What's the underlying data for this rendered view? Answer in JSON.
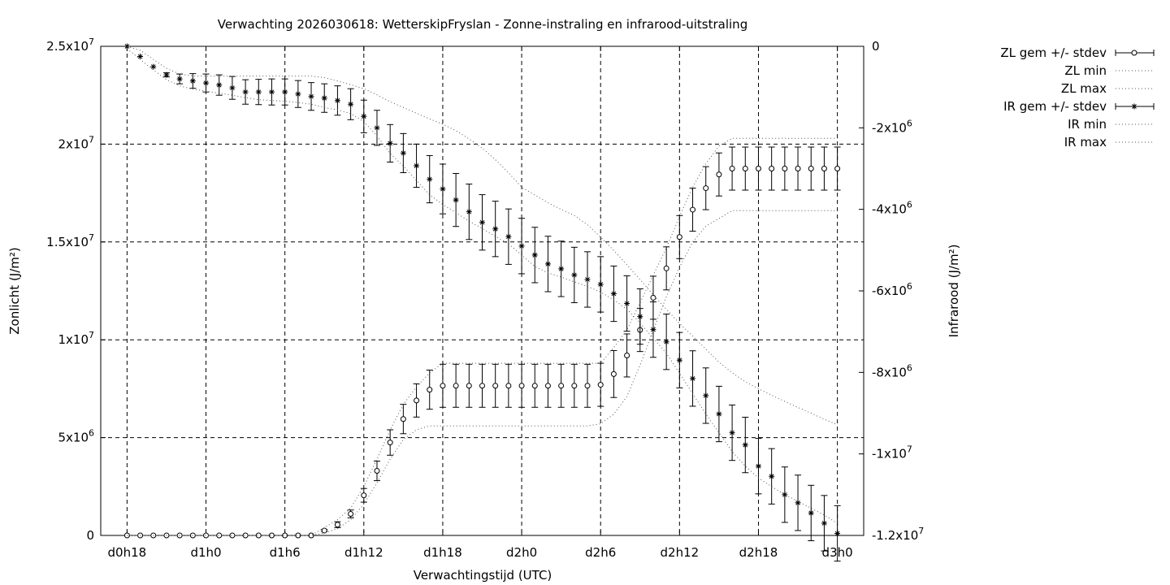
{
  "chart_data": {
    "type": "scatter",
    "title": "Verwachting 2026030618: WetterskipFryslan - Zonne-instraling en infrarood-uitstraling",
    "xlabel": "Verwachtingstijd (UTC)",
    "ylabel": "Zonlicht (J/m²)",
    "y2label": "Infrarood (J/m²)",
    "x_start_hours": 18,
    "x_step_hours": 1,
    "x_ticks": [
      {
        "hour": 18,
        "label": "d0h18"
      },
      {
        "hour": 24,
        "label": "d1h0"
      },
      {
        "hour": 30,
        "label": "d1h6"
      },
      {
        "hour": 36,
        "label": "d1h12"
      },
      {
        "hour": 42,
        "label": "d1h18"
      },
      {
        "hour": 48,
        "label": "d2h0"
      },
      {
        "hour": 54,
        "label": "d2h6"
      },
      {
        "hour": 60,
        "label": "d2h12"
      },
      {
        "hour": 66,
        "label": "d2h18"
      },
      {
        "hour": 72,
        "label": "d3h0"
      }
    ],
    "xlim": [
      16,
      74
    ],
    "ylim": [
      0,
      25000000
    ],
    "y2lim": [
      -12000000,
      0
    ],
    "y_ticks": [
      {
        "value": 0,
        "label": "0"
      },
      {
        "value": 5000000,
        "label": "5x10",
        "exp": "6"
      },
      {
        "value": 10000000,
        "label": "1x10",
        "exp": "7"
      },
      {
        "value": 15000000,
        "label": "1.5x10",
        "exp": "7"
      },
      {
        "value": 20000000,
        "label": "2x10",
        "exp": "7"
      },
      {
        "value": 25000000,
        "label": "2.5x10",
        "exp": "7"
      }
    ],
    "y2_ticks": [
      {
        "value": 0,
        "label": "0"
      },
      {
        "value": -2000000,
        "label": "-2x10",
        "exp": "6"
      },
      {
        "value": -4000000,
        "label": "-4x10",
        "exp": "6"
      },
      {
        "value": -6000000,
        "label": "-6x10",
        "exp": "6"
      },
      {
        "value": -8000000,
        "label": "-8x10",
        "exp": "6"
      },
      {
        "value": -10000000,
        "label": "-1x10",
        "exp": "7"
      },
      {
        "value": -12000000,
        "label": "-1.2x10",
        "exp": "7"
      }
    ],
    "grid": true,
    "legend_position": "outside-right",
    "series": [
      {
        "name": "ZL gem +/- stdev",
        "axis": "left",
        "marker": "circle",
        "mean": [
          0,
          0,
          0,
          0,
          0,
          0,
          0,
          0,
          0,
          0,
          0,
          0,
          0,
          0,
          0,
          250000,
          550000,
          1100000,
          2050000,
          3300000,
          4750000,
          5950000,
          6900000,
          7450000,
          7650000,
          7650000,
          7650000,
          7650000,
          7650000,
          7650000,
          7650000,
          7650000,
          7650000,
          7650000,
          7650000,
          7650000,
          7700000,
          8250000,
          9200000,
          10500000,
          12150000,
          13650000,
          15250000,
          16650000,
          17750000,
          18450000,
          18750000,
          18750000,
          18750000,
          18750000,
          18750000,
          18750000,
          18750000,
          18750000,
          18750000
        ],
        "stdev": [
          0,
          0,
          0,
          0,
          0,
          0,
          0,
          0,
          0,
          0,
          0,
          0,
          0,
          0,
          0,
          50000,
          150000,
          200000,
          350000,
          500000,
          650000,
          750000,
          850000,
          1000000,
          1100000,
          1100000,
          1100000,
          1100000,
          1100000,
          1100000,
          1100000,
          1100000,
          1100000,
          1100000,
          1100000,
          1100000,
          1100000,
          1200000,
          1100000,
          1100000,
          1100000,
          1100000,
          1100000,
          1100000,
          1100000,
          1100000,
          1100000,
          1100000,
          1100000,
          1100000,
          1100000,
          1100000,
          1100000,
          1100000,
          1100000
        ]
      },
      {
        "name": "ZL min",
        "axis": "left",
        "style": "dotted",
        "values": [
          0,
          0,
          0,
          0,
          0,
          0,
          0,
          0,
          0,
          0,
          0,
          0,
          0,
          0,
          0,
          120000,
          350000,
          800000,
          1600000,
          2700000,
          3900000,
          4900000,
          5400000,
          5600000,
          5600000,
          5600000,
          5600000,
          5600000,
          5600000,
          5600000,
          5600000,
          5600000,
          5600000,
          5600000,
          5600000,
          5600000,
          5700000,
          6200000,
          7100000,
          8700000,
          10500000,
          12200000,
          13700000,
          15000000,
          15800000,
          16200000,
          16600000,
          16600000,
          16600000,
          16600000,
          16600000,
          16600000,
          16600000,
          16600000,
          16600000
        ]
      },
      {
        "name": "ZL max",
        "axis": "left",
        "style": "dotted",
        "values": [
          0,
          0,
          0,
          0,
          0,
          0,
          0,
          0,
          0,
          0,
          0,
          0,
          0,
          0,
          0,
          400000,
          800000,
          1400000,
          2500000,
          3900000,
          5400000,
          6700000,
          7600000,
          8300000,
          8800000,
          8800000,
          8800000,
          8800000,
          8800000,
          8800000,
          8800000,
          8800000,
          8800000,
          8800000,
          8800000,
          8800000,
          8800000,
          9600000,
          10500000,
          11900000,
          13300000,
          14700000,
          16300000,
          17800000,
          19000000,
          19900000,
          20300000,
          20300000,
          20300000,
          20300000,
          20300000,
          20300000,
          20300000,
          20300000,
          20300000
        ]
      },
      {
        "name": "IR gem +/- stdev",
        "axis": "right",
        "marker": "star",
        "mean": [
          0,
          -250000,
          -500000,
          -700000,
          -800000,
          -850000,
          -900000,
          -950000,
          -1020000,
          -1120000,
          -1120000,
          -1120000,
          -1120000,
          -1170000,
          -1230000,
          -1270000,
          -1330000,
          -1420000,
          -1720000,
          -2000000,
          -2380000,
          -2620000,
          -2930000,
          -3260000,
          -3500000,
          -3770000,
          -4060000,
          -4320000,
          -4480000,
          -4670000,
          -4900000,
          -5120000,
          -5340000,
          -5460000,
          -5610000,
          -5720000,
          -5840000,
          -6070000,
          -6310000,
          -6630000,
          -6950000,
          -7250000,
          -7700000,
          -8150000,
          -8570000,
          -9020000,
          -9480000,
          -9780000,
          -10300000,
          -10550000,
          -11000000,
          -11200000,
          -11450000,
          -11700000,
          -11950000
        ],
        "stdev": [
          0,
          0,
          0,
          50000,
          120000,
          180000,
          220000,
          250000,
          280000,
          300000,
          310000,
          320000,
          320000,
          330000,
          340000,
          350000,
          360000,
          380000,
          400000,
          430000,
          460000,
          480000,
          530000,
          580000,
          610000,
          650000,
          680000,
          680000,
          680000,
          680000,
          680000,
          680000,
          680000,
          680000,
          680000,
          680000,
          680000,
          680000,
          680000,
          680000,
          680000,
          680000,
          680000,
          680000,
          680000,
          680000,
          680000,
          680000,
          680000,
          680000,
          680000,
          680000,
          680000,
          680000,
          680000
        ]
      },
      {
        "name": "IR min",
        "axis": "right",
        "style": "dotted",
        "values": [
          -60000,
          -320000,
          -580000,
          -820000,
          -970000,
          -1050000,
          -1100000,
          -1150000,
          -1200000,
          -1260000,
          -1310000,
          -1330000,
          -1350000,
          -1380000,
          -1420000,
          -1500000,
          -1560000,
          -1650000,
          -1850000,
          -2200000,
          -2630000,
          -2940000,
          -3290000,
          -3640000,
          -3880000,
          -4080000,
          -4290000,
          -4470000,
          -4660000,
          -4850000,
          -5120000,
          -5400000,
          -5560000,
          -5660000,
          -5780000,
          -5890000,
          -6030000,
          -6220000,
          -6450000,
          -6790000,
          -7160000,
          -7530000,
          -8020000,
          -8520000,
          -9020000,
          -9480000,
          -9940000,
          -10300000,
          -10590000,
          -10800000,
          -11000000,
          -11160000,
          -11330000,
          -11500000,
          -11700000
        ]
      },
      {
        "name": "IR max",
        "axis": "right",
        "style": "dotted",
        "values": [
          0,
          -100000,
          -320000,
          -540000,
          -680000,
          -730000,
          -730000,
          -730000,
          -730000,
          -730000,
          -730000,
          -730000,
          -730000,
          -730000,
          -730000,
          -770000,
          -850000,
          -940000,
          -1040000,
          -1190000,
          -1360000,
          -1500000,
          -1640000,
          -1780000,
          -1910000,
          -2070000,
          -2270000,
          -2500000,
          -2780000,
          -3100000,
          -3460000,
          -3650000,
          -3840000,
          -4000000,
          -4150000,
          -4380000,
          -4680000,
          -5010000,
          -5360000,
          -5720000,
          -6100000,
          -6450000,
          -6800000,
          -7110000,
          -7430000,
          -7750000,
          -8010000,
          -8230000,
          -8400000,
          -8560000,
          -8710000,
          -8860000,
          -9000000,
          -9150000,
          -9280000
        ]
      }
    ]
  }
}
